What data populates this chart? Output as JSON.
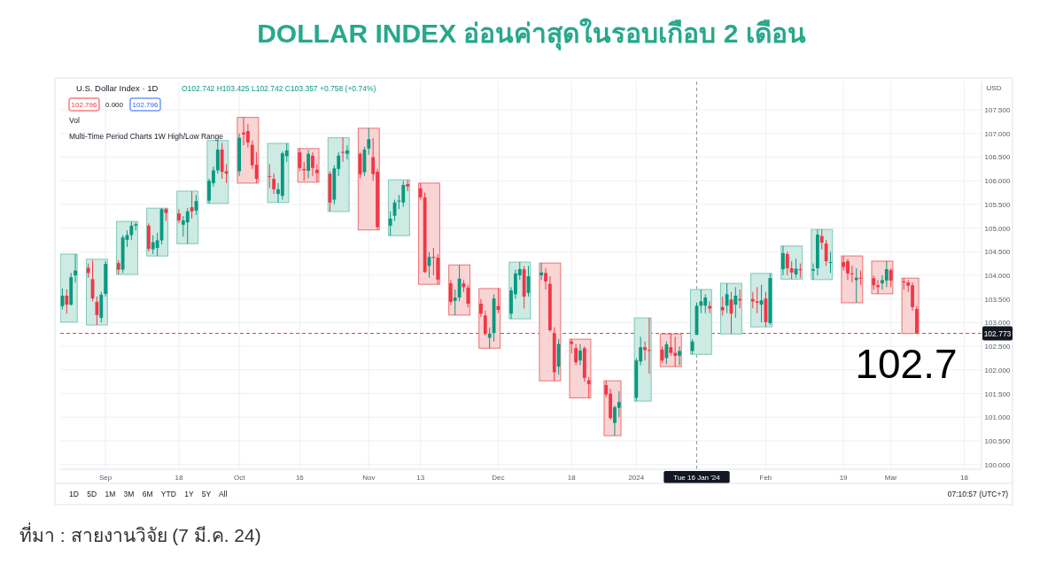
{
  "chart_data": {
    "type": "candlestick",
    "title": "DOLLAR INDEX อ่อนค่าสุดในรอบเกือบ 2 เดือน",
    "ylabel": "USD",
    "x": [
      "2023-08-22",
      "2023-08-23",
      "2023-08-24",
      "2023-08-25",
      "2023-08-28",
      "2023-08-29",
      "2023-08-30",
      "2023-08-31",
      "2023-09-01",
      "2023-09-04",
      "2023-09-05",
      "2023-09-06",
      "2023-09-07",
      "2023-09-08",
      "2023-09-11",
      "2023-09-12",
      "2023-09-13",
      "2023-09-14",
      "2023-09-15",
      "2023-09-18",
      "2023-09-19",
      "2023-09-20",
      "2023-09-21",
      "2023-09-22",
      "2023-09-25",
      "2023-09-26",
      "2023-09-27",
      "2023-09-28",
      "2023-09-29",
      "2023-10-02",
      "2023-10-03",
      "2023-10-04",
      "2023-10-05",
      "2023-10-06",
      "2023-10-09",
      "2023-10-10",
      "2023-10-11",
      "2023-10-12",
      "2023-10-13",
      "2023-10-16",
      "2023-10-17",
      "2023-10-18",
      "2023-10-19",
      "2023-10-20",
      "2023-10-23",
      "2023-10-24",
      "2023-10-25",
      "2023-10-26",
      "2023-10-27",
      "2023-10-30",
      "2023-10-31",
      "2023-11-01",
      "2023-11-02",
      "2023-11-03",
      "2023-11-06",
      "2023-11-07",
      "2023-11-08",
      "2023-11-09",
      "2023-11-10",
      "2023-11-13",
      "2023-11-14",
      "2023-11-15",
      "2023-11-16",
      "2023-11-17",
      "2023-11-20",
      "2023-11-21",
      "2023-11-22",
      "2023-11-23",
      "2023-11-24",
      "2023-11-27",
      "2023-11-28",
      "2023-11-29",
      "2023-11-30",
      "2023-12-01",
      "2023-12-04",
      "2023-12-05",
      "2023-12-06",
      "2023-12-07",
      "2023-12-08",
      "2023-12-11",
      "2023-12-12",
      "2023-12-13",
      "2023-12-14",
      "2023-12-15",
      "2023-12-18",
      "2023-12-19",
      "2023-12-20",
      "2023-12-21",
      "2023-12-22",
      "2023-12-26",
      "2023-12-27",
      "2023-12-28",
      "2023-12-29",
      "2024-01-02",
      "2024-01-03",
      "2024-01-04",
      "2024-01-05",
      "2024-01-08",
      "2024-01-09",
      "2024-01-10",
      "2024-01-11",
      "2024-01-12",
      "2024-01-15",
      "2024-01-16",
      "2024-01-17",
      "2024-01-18",
      "2024-01-19",
      "2024-01-22",
      "2024-01-23",
      "2024-01-24",
      "2024-01-25",
      "2024-01-26",
      "2024-01-29",
      "2024-01-30",
      "2024-01-31",
      "2024-02-01",
      "2024-02-02",
      "2024-02-05",
      "2024-02-06",
      "2024-02-07",
      "2024-02-08",
      "2024-02-09",
      "2024-02-12",
      "2024-02-13",
      "2024-02-14",
      "2024-02-15",
      "2024-02-16",
      "2024-02-19",
      "2024-02-20",
      "2024-02-21",
      "2024-02-22",
      "2024-02-23",
      "2024-02-26",
      "2024-02-27",
      "2024-02-28",
      "2024-02-29",
      "2024-03-01",
      "2024-03-04",
      "2024-03-05",
      "2024-03-06",
      "2024-03-07"
    ],
    "ohlc": [
      [
        103.35,
        103.72,
        103.28,
        103.57
      ],
      [
        103.57,
        103.7,
        103.19,
        103.38
      ],
      [
        103.38,
        104.05,
        103.36,
        103.96
      ],
      [
        104.0,
        104.45,
        103.85,
        104.1
      ],
      [
        104.16,
        104.25,
        103.95,
        104.05
      ],
      [
        103.92,
        104.32,
        103.45,
        103.51
      ],
      [
        103.44,
        103.55,
        102.95,
        103.16
      ],
      [
        103.1,
        103.65,
        103.0,
        103.59
      ],
      [
        103.61,
        104.3,
        103.55,
        104.24
      ],
      [
        104.26,
        104.32,
        104.02,
        104.12
      ],
      [
        104.12,
        104.85,
        104.05,
        104.8
      ],
      [
        104.75,
        104.95,
        104.6,
        104.85
      ],
      [
        104.85,
        105.14,
        104.75,
        105.05
      ],
      [
        105.05,
        105.12,
        104.95,
        105.08
      ],
      [
        105.05,
        105.1,
        104.5,
        104.56
      ],
      [
        104.55,
        104.85,
        104.45,
        104.7
      ],
      [
        104.58,
        104.9,
        104.41,
        104.74
      ],
      [
        104.74,
        105.42,
        104.65,
        105.4
      ],
      [
        105.4,
        105.42,
        105.15,
        105.32
      ],
      [
        105.31,
        105.4,
        105.1,
        105.16
      ],
      [
        105.07,
        105.25,
        104.82,
        105.16
      ],
      [
        105.12,
        105.42,
        104.67,
        105.35
      ],
      [
        105.44,
        105.78,
        105.2,
        105.35
      ],
      [
        105.37,
        105.7,
        105.28,
        105.57
      ],
      [
        105.58,
        106.04,
        105.52,
        106.0
      ],
      [
        105.95,
        106.3,
        105.88,
        106.22
      ],
      [
        106.22,
        106.85,
        106.15,
        106.66
      ],
      [
        106.66,
        106.8,
        106.04,
        106.19
      ],
      [
        106.2,
        106.35,
        105.95,
        106.15
      ],
      [
        106.2,
        107.0,
        106.1,
        106.91
      ],
      [
        107.02,
        107.34,
        106.75,
        106.98
      ],
      [
        107.05,
        107.2,
        106.7,
        106.81
      ],
      [
        106.76,
        106.85,
        106.25,
        106.33
      ],
      [
        106.34,
        106.6,
        105.95,
        106.04
      ],
      [
        106.1,
        106.35,
        105.85,
        106.08
      ],
      [
        106.04,
        106.15,
        105.72,
        105.82
      ],
      [
        105.72,
        105.95,
        105.54,
        105.82
      ],
      [
        105.68,
        106.62,
        105.6,
        106.58
      ],
      [
        106.52,
        106.79,
        106.4,
        106.64
      ],
      [
        106.6,
        106.68,
        106.2,
        106.27
      ],
      [
        106.25,
        106.4,
        106.0,
        106.22
      ],
      [
        106.21,
        106.65,
        106.05,
        106.57
      ],
      [
        106.53,
        106.6,
        106.1,
        106.27
      ],
      [
        106.23,
        106.35,
        105.97,
        106.16
      ],
      [
        106.15,
        106.2,
        105.35,
        105.54
      ],
      [
        105.6,
        106.33,
        105.5,
        106.26
      ],
      [
        106.25,
        106.6,
        106.1,
        106.53
      ],
      [
        106.61,
        106.91,
        106.4,
        106.59
      ],
      [
        106.57,
        106.75,
        106.45,
        106.64
      ],
      [
        106.57,
        106.6,
        106.05,
        106.14
      ],
      [
        106.18,
        106.72,
        106.1,
        106.66
      ],
      [
        106.68,
        107.11,
        106.55,
        106.88
      ],
      [
        106.5,
        106.9,
        106.0,
        106.14
      ],
      [
        106.19,
        106.25,
        104.96,
        105.02
      ],
      [
        105.05,
        105.35,
        104.84,
        105.2
      ],
      [
        105.26,
        105.6,
        105.15,
        105.54
      ],
      [
        105.56,
        105.7,
        105.4,
        105.58
      ],
      [
        105.54,
        106.0,
        105.45,
        105.91
      ],
      [
        105.93,
        106.02,
        105.78,
        105.88
      ],
      [
        105.84,
        105.95,
        105.6,
        105.65
      ],
      [
        105.65,
        105.75,
        104.05,
        104.07
      ],
      [
        104.2,
        104.5,
        103.95,
        104.39
      ],
      [
        104.39,
        104.58,
        104.0,
        104.38
      ],
      [
        104.37,
        104.45,
        103.81,
        103.91
      ],
      [
        103.83,
        103.9,
        103.37,
        103.44
      ],
      [
        103.46,
        103.7,
        103.16,
        103.53
      ],
      [
        103.53,
        104.22,
        103.45,
        103.93
      ],
      [
        103.83,
        103.9,
        103.65,
        103.75
      ],
      [
        103.74,
        103.8,
        103.32,
        103.4
      ],
      [
        103.4,
        103.5,
        103.12,
        103.19
      ],
      [
        103.15,
        103.25,
        102.72,
        102.76
      ],
      [
        102.68,
        102.9,
        102.46,
        102.77
      ],
      [
        102.78,
        103.6,
        102.6,
        103.51
      ],
      [
        103.35,
        103.72,
        103.2,
        103.27
      ],
      [
        103.19,
        103.75,
        103.08,
        103.68
      ],
      [
        103.6,
        104.12,
        103.5,
        104.04
      ],
      [
        104.0,
        104.28,
        103.9,
        104.13
      ],
      [
        104.13,
        104.2,
        103.3,
        103.55
      ],
      [
        103.63,
        104.2,
        103.55,
        103.98
      ],
      [
        104.0,
        104.26,
        103.9,
        104.06
      ],
      [
        104.05,
        104.15,
        103.7,
        103.87
      ],
      [
        103.82,
        103.98,
        102.8,
        102.84
      ],
      [
        102.78,
        102.9,
        101.77,
        101.95
      ],
      [
        102.07,
        102.65,
        101.9,
        102.55
      ],
      [
        102.6,
        102.65,
        102.35,
        102.55
      ],
      [
        102.46,
        102.55,
        102.1,
        102.16
      ],
      [
        102.2,
        102.55,
        102.1,
        102.41
      ],
      [
        102.46,
        102.5,
        101.75,
        101.83
      ],
      [
        101.78,
        101.85,
        101.41,
        101.7
      ],
      [
        101.68,
        101.77,
        101.42,
        101.48
      ],
      [
        101.5,
        101.6,
        100.95,
        100.98
      ],
      [
        100.88,
        101.25,
        100.61,
        101.21
      ],
      [
        101.2,
        101.55,
        101.0,
        101.32
      ],
      [
        101.41,
        102.25,
        101.34,
        102.2
      ],
      [
        102.18,
        102.7,
        102.1,
        102.48
      ],
      [
        102.48,
        102.6,
        102.2,
        102.42
      ],
      [
        102.42,
        103.1,
        101.92,
        102.41
      ],
      [
        102.43,
        102.5,
        102.15,
        102.2
      ],
      [
        102.25,
        102.6,
        102.12,
        102.54
      ],
      [
        102.48,
        102.76,
        102.3,
        102.36
      ],
      [
        102.36,
        102.7,
        102.07,
        102.3
      ],
      [
        102.3,
        102.5,
        102.1,
        102.4
      ],
      [
        102.4,
        102.65,
        102.33,
        102.6
      ],
      [
        102.742,
        103.425,
        102.742,
        103.357
      ],
      [
        103.36,
        103.7,
        103.2,
        103.45
      ],
      [
        103.36,
        103.6,
        103.2,
        103.53
      ],
      [
        103.35,
        103.45,
        103.2,
        103.3
      ],
      [
        103.33,
        103.55,
        103.15,
        103.26
      ],
      [
        103.36,
        103.83,
        103.2,
        103.6
      ],
      [
        103.49,
        103.65,
        102.76,
        103.19
      ],
      [
        103.38,
        103.75,
        103.1,
        103.57
      ],
      [
        103.5,
        103.7,
        103.3,
        103.47
      ],
      [
        103.5,
        103.65,
        103.3,
        103.45
      ],
      [
        103.45,
        103.75,
        103.2,
        103.42
      ],
      [
        103.38,
        103.8,
        103.0,
        103.47
      ],
      [
        103.51,
        103.65,
        102.91,
        103.01
      ],
      [
        102.99,
        104.04,
        102.95,
        103.94
      ],
      [
        104.13,
        104.62,
        104.0,
        104.47
      ],
      [
        104.45,
        104.5,
        104.0,
        104.15
      ],
      [
        104.15,
        104.3,
        103.92,
        104.06
      ],
      [
        104.02,
        104.35,
        103.95,
        104.14
      ],
      [
        104.13,
        104.25,
        103.95,
        104.11
      ],
      [
        104.1,
        104.25,
        103.91,
        104.13
      ],
      [
        104.15,
        104.97,
        104.0,
        104.86
      ],
      [
        104.83,
        104.97,
        104.55,
        104.69
      ],
      [
        104.67,
        104.75,
        104.2,
        104.3
      ],
      [
        104.27,
        104.5,
        104.05,
        104.28
      ],
      [
        104.28,
        104.41,
        104.1,
        104.18
      ],
      [
        104.3,
        104.35,
        103.9,
        104.04
      ],
      [
        104.04,
        104.2,
        103.85,
        104.02
      ],
      [
        103.9,
        104.15,
        103.42,
        103.95
      ],
      [
        103.95,
        104.1,
        103.8,
        103.94
      ],
      [
        103.94,
        104.0,
        103.7,
        103.79
      ],
      [
        103.79,
        103.9,
        103.61,
        103.75
      ],
      [
        103.83,
        104.0,
        103.7,
        103.9
      ],
      [
        103.89,
        104.3,
        103.75,
        104.13
      ],
      [
        104.11,
        104.15,
        103.75,
        103.89
      ],
      [
        103.87,
        103.94,
        103.7,
        103.85
      ],
      [
        103.85,
        103.9,
        103.65,
        103.78
      ],
      [
        103.79,
        103.85,
        103.25,
        103.33
      ],
      [
        103.29,
        103.35,
        102.77,
        102.77
      ]
    ],
    "colors": [
      "#089981",
      "#f23645",
      "#089981",
      "#089981",
      "#f23645",
      "#f23645",
      "#f23645",
      "#089981",
      "#089981",
      "#f23645",
      "#089981",
      "#089981",
      "#089981",
      "#089981",
      "#f23645",
      "#089981",
      "#089981",
      "#089981",
      "#f23645",
      "#f23645",
      "#089981",
      "#089981",
      "#f23645",
      "#089981",
      "#089981",
      "#089981",
      "#089981",
      "#f23645",
      "#f23645",
      "#089981",
      "#f23645",
      "#f23645",
      "#f23645",
      "#f23645",
      "#f23645",
      "#f23645",
      "#089981",
      "#089981",
      "#089981",
      "#f23645",
      "#f23645",
      "#089981",
      "#f23645",
      "#f23645",
      "#f23645",
      "#089981",
      "#089981",
      "#f23645",
      "#089981",
      "#f23645",
      "#089981",
      "#089981",
      "#f23645",
      "#f23645",
      "#089981",
      "#089981",
      "#089981",
      "#089981",
      "#f23645",
      "#f23645",
      "#f23645",
      "#089981",
      "#f23645",
      "#f23645",
      "#f23645",
      "#089981",
      "#089981",
      "#f23645",
      "#f23645",
      "#f23645",
      "#f23645",
      "#089981",
      "#089981",
      "#f23645",
      "#089981",
      "#089981",
      "#089981",
      "#f23645",
      "#089981",
      "#089981",
      "#f23645",
      "#f23645",
      "#f23645",
      "#089981",
      "#f23645",
      "#f23645",
      "#089981",
      "#f23645",
      "#f23645",
      "#f23645",
      "#f23645",
      "#089981",
      "#089981",
      "#089981",
      "#089981",
      "#f23645",
      "#f23645",
      "#f23645",
      "#089981",
      "#f23645",
      "#f23645",
      "#089981",
      "#089981",
      "#089981",
      "#089981",
      "#089981",
      "#f23645",
      "#f23645",
      "#089981",
      "#f23645",
      "#089981",
      "#f23645",
      "#f23645",
      "#f23645",
      "#089981",
      "#f23645",
      "#089981",
      "#089981",
      "#f23645",
      "#f23645",
      "#089981",
      "#f23645",
      "#089981",
      "#089981",
      "#f23645",
      "#f23645",
      "#089981",
      "#f23645",
      "#f23645",
      "#f23645",
      "#089981",
      "#f23645",
      "#f23645",
      "#f23645",
      "#089981",
      "#089981",
      "#f23645",
      "#f23645",
      "#f23645",
      "#f23645",
      "#f23645"
    ],
    "series": [
      {
        "type": "bar",
        "x": [
          "2023-08-23T12:00",
          "2023-08-30",
          "2023-09-06",
          "2023-09-13",
          "2023-09-20",
          "2023-09-27",
          "2023-10-04",
          "2023-10-11",
          "2023-10-18",
          "2023-10-25",
          "2023-11-01",
          "2023-11-08",
          "2023-11-15",
          "2023-11-22",
          "2023-11-29",
          "2023-12-06",
          "2023-12-13",
          "2023-12-20",
          "2023-12-27T12:00",
          "2024-01-03T12:00",
          "2024-01-10",
          "2024-01-17",
          "2024-01-24",
          "2024-01-31",
          "2024-02-07",
          "2024-02-14",
          "2024-02-21",
          "2024-02-28",
          "2024-03-05T12:00"
        ],
        "base": [
          103.01,
          102.95,
          104.02,
          104.41,
          104.67,
          105.52,
          105.95,
          105.54,
          105.97,
          105.35,
          104.96,
          104.84,
          103.81,
          103.16,
          102.46,
          103.08,
          101.77,
          101.41,
          100.61,
          101.34,
          102.07,
          102.33,
          102.76,
          102.91,
          103.92,
          103.91,
          103.42,
          103.61,
          102.77
        ],
        "values": [
          1.44,
          1.39,
          1.12,
          1.01,
          1.11,
          1.33,
          1.39,
          1.25,
          0.71,
          1.56,
          2.15,
          1.18,
          2.14,
          1.06,
          1.26,
          1.2,
          2.49,
          1.24,
          1.16,
          1.76,
          0.69,
          1.37,
          1.07,
          1.13,
          0.7,
          1.06,
          0.99,
          0.69,
          1.17
        ],
        "colors": [
          "#cdeae3",
          "#cdeae3",
          "#cdeae3",
          "#cdeae3",
          "#cdeae3",
          "#cdeae3",
          "#f9d4d4",
          "#cdeae3",
          "#f9d4d4",
          "#cdeae3",
          "#f9d4d4",
          "#cdeae3",
          "#f9d4d4",
          "#f9d4d4",
          "#f9d4d4",
          "#cdeae3",
          "#f9d4d4",
          "#f9d4d4",
          "#f9d4d4",
          "#cdeae3",
          "#f9d4d4",
          "#cdeae3",
          "#cdeae3",
          "#cdeae3",
          "#cdeae3",
          "#cdeae3",
          "#f9d4d4",
          "#f9d4d4",
          "#f9d4d4"
        ]
      }
    ],
    "xlim": [
      "2023-08-21T12:00",
      "2024-03-22"
    ],
    "xticks": [
      {
        "value": "2023-09-01",
        "label": "Sep"
      },
      {
        "value": "2023-09-18",
        "label": "18"
      },
      {
        "value": "2023-10-02",
        "label": "Oct"
      },
      {
        "value": "2023-10-16",
        "label": "16"
      },
      {
        "value": "2023-11-01",
        "label": "Nov"
      },
      {
        "value": "2023-11-13",
        "label": "13"
      },
      {
        "value": "2023-12-01",
        "label": "Dec"
      },
      {
        "value": "2023-12-18",
        "label": "18"
      },
      {
        "value": "2024-01-02",
        "label": "2024"
      },
      {
        "value": "2024-02-01",
        "label": "Feb"
      },
      {
        "value": "2024-02-19",
        "label": "19"
      },
      {
        "value": "2024-03-01",
        "label": "Mar"
      },
      {
        "value": "2024-03-18",
        "label": "18"
      }
    ],
    "ylim": [
      99.9,
      108.1
    ],
    "yticks": [
      {
        "value": 100,
        "label": "100.000"
      },
      {
        "value": 100.5,
        "label": "100.500"
      },
      {
        "value": 101,
        "label": "101.000"
      },
      {
        "value": 101.5,
        "label": "101.500"
      },
      {
        "value": 102,
        "label": "102.000"
      },
      {
        "value": 102.5,
        "label": "102.500"
      },
      {
        "value": 103,
        "label": "103.000"
      },
      {
        "value": 103.5,
        "label": "103.500"
      },
      {
        "value": 104,
        "label": "104.000"
      },
      {
        "value": 104.5,
        "label": "104.500"
      },
      {
        "value": 105,
        "label": "105.000"
      },
      {
        "value": 105.5,
        "label": "105.500"
      },
      {
        "value": 106,
        "label": "106.000"
      },
      {
        "value": 106.5,
        "label": "106.500"
      },
      {
        "value": 107,
        "label": "107.000"
      },
      {
        "value": 107.5,
        "label": "107.500"
      }
    ],
    "grid": true,
    "ref_lines": [
      {
        "axis": "y",
        "value": 102.773,
        "label": "102.773",
        "color": "#f23645",
        "line_style": "dashed"
      },
      {
        "axis": "x",
        "value": "2024-01-16",
        "label": "Tue 16 Jan '24",
        "color": "#9598a1",
        "line_style": "dashed"
      }
    ],
    "annotations": [
      "U.S. Dollar Index · 1D",
      "O102.742 H103.425 L102.742 C103.357 +0.758 (+0.74%)",
      "102.796",
      "0.000",
      "102.796",
      "Vol",
      "Multi-Time Period Charts 1W High/Low Range",
      "1D 5D 1M 3M 6M YTD 1Y 5Y All",
      "07:10:57 (UTC+7)",
      "102.7",
      "ที่มา : สายงานวิจัย (7 มี.ค. 24)"
    ]
  }
}
